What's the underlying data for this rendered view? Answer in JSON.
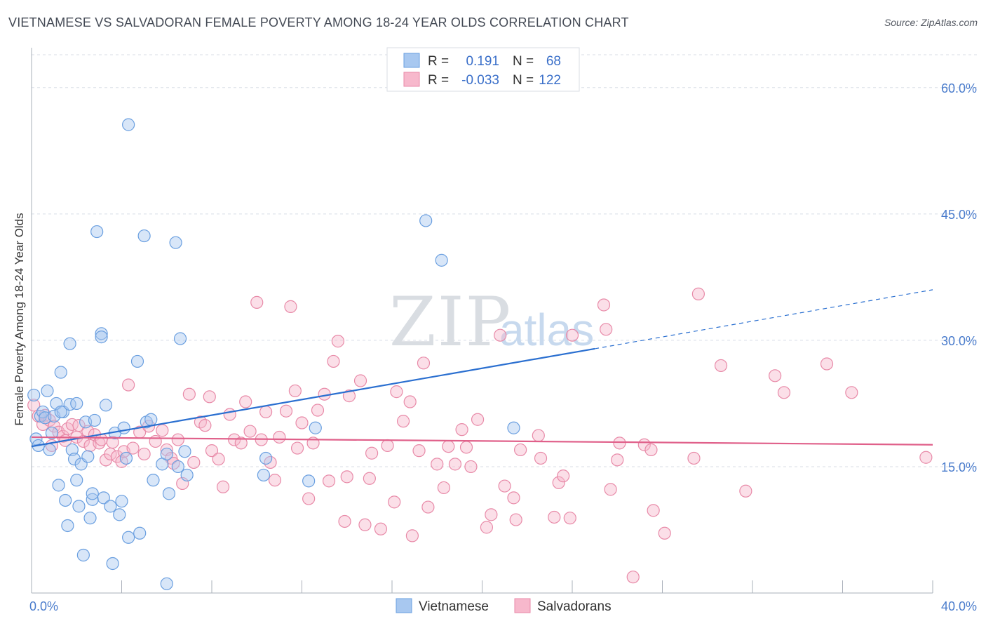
{
  "title": "VIETNAMESE VS SALVADORAN FEMALE POVERTY AMONG 18-24 YEAR OLDS CORRELATION CHART",
  "source": "Source: ZipAtlas.com",
  "watermark": {
    "zip": "ZIP",
    "atlas": "atlas"
  },
  "colors": {
    "vietnamese_fill": "#a8c8f0",
    "vietnamese_stroke": "#6a9fe0",
    "vietnamese_line": "#2a6fd0",
    "salvadoran_fill": "#f7b8cc",
    "salvadoran_stroke": "#e88aa8",
    "salvadoran_line": "#e0608a",
    "tick_label": "#4a7ccc",
    "grid": "#d8dde6"
  },
  "legend": {
    "rows": [
      {
        "r_label": "R =",
        "r_value": "0.191",
        "n_label": "N =",
        "n_value": "68"
      },
      {
        "r_label": "R =",
        "r_value": "-0.033",
        "n_label": "N =",
        "n_value": "122"
      }
    ]
  },
  "chart_data": {
    "type": "scatter",
    "title": "VIETNAMESE VS SALVADORAN FEMALE POVERTY AMONG 18-24 YEAR OLDS CORRELATION CHART",
    "xlabel": "",
    "ylabel": "Female Poverty Among 18-24 Year Olds",
    "xlim": [
      0,
      40
    ],
    "ylim": [
      0,
      60
    ],
    "x_tick_labels": [
      "0.0%",
      "40.0%"
    ],
    "y_ticks": [
      15,
      30,
      45,
      60
    ],
    "y_tick_labels": [
      "15.0%",
      "30.0%",
      "45.0%",
      "60.0%"
    ],
    "grid": true,
    "legend_position": "top-center",
    "series": [
      {
        "name": "Vietnamese",
        "r": 0.191,
        "n": 68,
        "trend": {
          "x0": 0,
          "y0": 17.4,
          "x1": 25,
          "y1": 29.0,
          "dashed_to_x": 40,
          "dashed_to_y": 36.0
        },
        "points": [
          [
            0.1,
            23.5
          ],
          [
            0.2,
            18.3
          ],
          [
            0.3,
            17.5
          ],
          [
            0.4,
            21.0
          ],
          [
            0.5,
            21.5
          ],
          [
            0.6,
            20.8
          ],
          [
            0.7,
            24.0
          ],
          [
            0.8,
            17.0
          ],
          [
            0.9,
            19.0
          ],
          [
            1.0,
            21.0
          ],
          [
            1.1,
            22.5
          ],
          [
            1.2,
            12.8
          ],
          [
            1.3,
            26.2
          ],
          [
            1.4,
            21.5
          ],
          [
            1.5,
            11.0
          ],
          [
            1.6,
            8.0
          ],
          [
            1.7,
            29.6
          ],
          [
            1.7,
            22.4
          ],
          [
            1.8,
            17.0
          ],
          [
            1.9,
            15.9
          ],
          [
            2.0,
            13.4
          ],
          [
            2.1,
            10.3
          ],
          [
            2.2,
            15.3
          ],
          [
            2.3,
            4.5
          ],
          [
            2.4,
            20.3
          ],
          [
            2.5,
            16.2
          ],
          [
            2.6,
            8.9
          ],
          [
            2.7,
            11.1
          ],
          [
            2.7,
            11.8
          ],
          [
            2.8,
            20.5
          ],
          [
            2.9,
            42.9
          ],
          [
            3.1,
            30.8
          ],
          [
            3.1,
            30.4
          ],
          [
            3.2,
            11.3
          ],
          [
            3.3,
            22.3
          ],
          [
            3.5,
            10.3
          ],
          [
            3.6,
            3.5
          ],
          [
            3.7,
            19.0
          ],
          [
            3.9,
            9.3
          ],
          [
            4.1,
            19.6
          ],
          [
            4.0,
            10.9
          ],
          [
            4.3,
            55.6
          ],
          [
            4.2,
            16.0
          ],
          [
            4.3,
            6.6
          ],
          [
            4.7,
            27.5
          ],
          [
            4.8,
            7.1
          ],
          [
            5.0,
            42.4
          ],
          [
            5.1,
            20.3
          ],
          [
            5.3,
            20.6
          ],
          [
            5.4,
            13.4
          ],
          [
            5.8,
            15.3
          ],
          [
            6.0,
            1.1
          ],
          [
            6.1,
            11.8
          ],
          [
            6.4,
            41.6
          ],
          [
            6.5,
            15.0
          ],
          [
            6.6,
            30.2
          ],
          [
            6.8,
            16.8
          ],
          [
            6.9,
            14.0
          ],
          [
            10.3,
            14.0
          ],
          [
            10.4,
            16.0
          ],
          [
            12.3,
            13.3
          ],
          [
            12.6,
            19.6
          ],
          [
            17.5,
            44.2
          ],
          [
            18.2,
            39.5
          ],
          [
            21.4,
            19.6
          ],
          [
            6.0,
            16.5
          ],
          [
            2.0,
            22.5
          ],
          [
            1.3,
            21.5
          ]
        ]
      },
      {
        "name": "Salvadorans",
        "r": -0.033,
        "n": 122,
        "trend": {
          "x0": 0,
          "y0": 18.5,
          "x1": 40,
          "y1": 17.6
        },
        "points": [
          [
            0.1,
            22.3
          ],
          [
            0.3,
            21.0
          ],
          [
            0.5,
            20.0
          ],
          [
            0.6,
            21.1
          ],
          [
            0.8,
            20.5
          ],
          [
            0.9,
            17.5
          ],
          [
            1.0,
            19.8
          ],
          [
            1.2,
            19.1
          ],
          [
            1.4,
            18.6
          ],
          [
            1.5,
            18.1
          ],
          [
            1.6,
            19.5
          ],
          [
            1.8,
            20.0
          ],
          [
            2.0,
            18.5
          ],
          [
            2.1,
            19.9
          ],
          [
            2.3,
            18.0
          ],
          [
            2.5,
            19.2
          ],
          [
            2.6,
            17.5
          ],
          [
            2.8,
            18.8
          ],
          [
            3.0,
            17.8
          ],
          [
            3.1,
            18.2
          ],
          [
            3.3,
            15.8
          ],
          [
            3.5,
            16.5
          ],
          [
            3.6,
            17.9
          ],
          [
            3.8,
            16.2
          ],
          [
            4.0,
            15.6
          ],
          [
            4.1,
            16.8
          ],
          [
            4.3,
            24.7
          ],
          [
            4.5,
            17.2
          ],
          [
            4.8,
            19.1
          ],
          [
            5.0,
            16.5
          ],
          [
            5.2,
            19.8
          ],
          [
            5.5,
            18.0
          ],
          [
            5.8,
            19.3
          ],
          [
            6.0,
            17.0
          ],
          [
            6.2,
            16.0
          ],
          [
            6.3,
            15.4
          ],
          [
            6.5,
            18.2
          ],
          [
            6.7,
            13.0
          ],
          [
            7.0,
            23.6
          ],
          [
            7.2,
            15.5
          ],
          [
            7.5,
            20.3
          ],
          [
            7.7,
            19.9
          ],
          [
            7.9,
            23.3
          ],
          [
            8.0,
            16.9
          ],
          [
            8.3,
            15.9
          ],
          [
            8.5,
            12.6
          ],
          [
            8.8,
            21.2
          ],
          [
            9.0,
            18.2
          ],
          [
            9.3,
            17.8
          ],
          [
            9.5,
            22.7
          ],
          [
            9.7,
            19.2
          ],
          [
            10.0,
            34.5
          ],
          [
            10.2,
            18.2
          ],
          [
            10.4,
            21.5
          ],
          [
            10.6,
            15.5
          ],
          [
            10.8,
            13.4
          ],
          [
            11.0,
            18.5
          ],
          [
            11.3,
            21.6
          ],
          [
            11.5,
            34.0
          ],
          [
            11.7,
            24.0
          ],
          [
            11.8,
            17.2
          ],
          [
            12.0,
            20.2
          ],
          [
            12.3,
            11.2
          ],
          [
            12.5,
            17.8
          ],
          [
            12.7,
            21.7
          ],
          [
            13.0,
            23.6
          ],
          [
            13.2,
            13.3
          ],
          [
            13.4,
            27.5
          ],
          [
            13.6,
            29.9
          ],
          [
            13.9,
            8.5
          ],
          [
            14.0,
            13.8
          ],
          [
            14.1,
            23.4
          ],
          [
            14.6,
            25.2
          ],
          [
            14.8,
            8.1
          ],
          [
            15.0,
            13.6
          ],
          [
            15.1,
            16.6
          ],
          [
            15.5,
            7.6
          ],
          [
            15.8,
            17.5
          ],
          [
            16.1,
            10.8
          ],
          [
            16.2,
            23.9
          ],
          [
            16.5,
            20.4
          ],
          [
            16.8,
            22.7
          ],
          [
            16.9,
            6.8
          ],
          [
            17.2,
            16.9
          ],
          [
            17.4,
            27.3
          ],
          [
            17.6,
            10.2
          ],
          [
            18.0,
            15.3
          ],
          [
            18.3,
            12.5
          ],
          [
            18.5,
            17.4
          ],
          [
            18.8,
            15.3
          ],
          [
            19.1,
            19.4
          ],
          [
            19.3,
            17.3
          ],
          [
            19.5,
            15.0
          ],
          [
            19.8,
            20.6
          ],
          [
            20.2,
            7.8
          ],
          [
            20.4,
            9.3
          ],
          [
            20.8,
            30.6
          ],
          [
            21.0,
            12.7
          ],
          [
            21.4,
            11.3
          ],
          [
            21.5,
            8.7
          ],
          [
            21.7,
            17.0
          ],
          [
            22.5,
            18.7
          ],
          [
            22.6,
            16.0
          ],
          [
            23.2,
            9.0
          ],
          [
            23.4,
            13.1
          ],
          [
            23.6,
            13.9
          ],
          [
            23.9,
            8.9
          ],
          [
            24.0,
            30.6
          ],
          [
            25.4,
            34.2
          ],
          [
            25.5,
            31.3
          ],
          [
            25.7,
            12.3
          ],
          [
            26.0,
            15.8
          ],
          [
            26.1,
            17.8
          ],
          [
            26.7,
            1.9
          ],
          [
            27.2,
            17.6
          ],
          [
            27.5,
            17.0
          ],
          [
            27.6,
            9.8
          ],
          [
            28.1,
            7.1
          ],
          [
            29.4,
            16.0
          ],
          [
            29.6,
            35.5
          ],
          [
            30.6,
            27.0
          ],
          [
            31.7,
            12.1
          ],
          [
            33.0,
            25.8
          ],
          [
            33.4,
            23.8
          ],
          [
            35.3,
            27.2
          ],
          [
            36.4,
            23.8
          ],
          [
            39.7,
            16.1
          ]
        ]
      }
    ]
  },
  "bottom_legend": [
    "Vietnamese",
    "Salvadorans"
  ]
}
